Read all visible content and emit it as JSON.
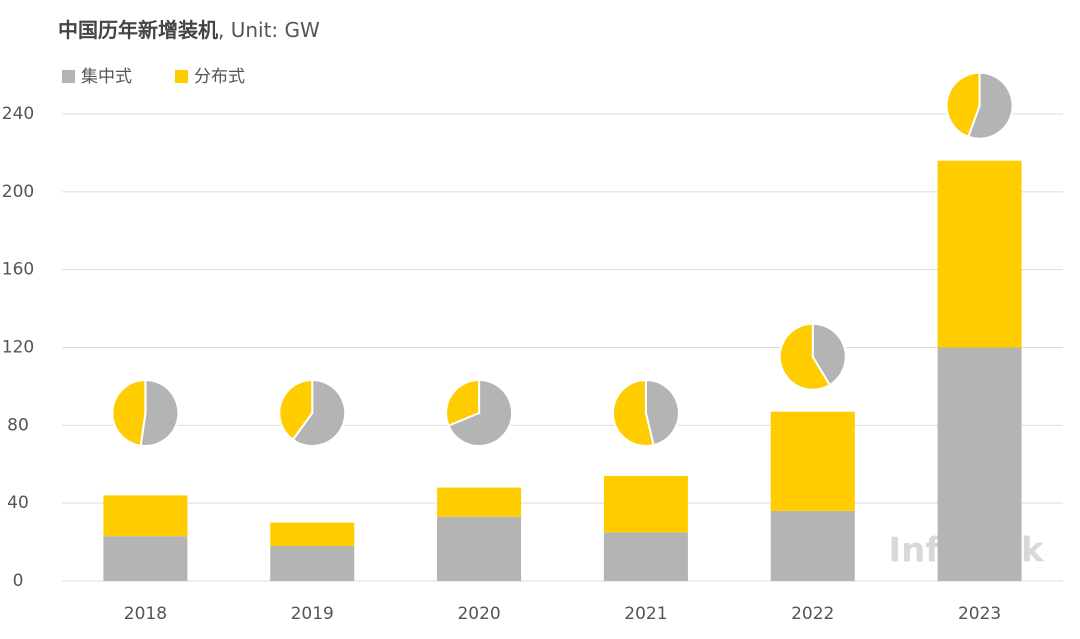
{
  "chart_data": {
    "type": "stacked_bar_with_pies",
    "title": "中国历年新增装机",
    "unit": ", Unit: GW",
    "categories": [
      "2018",
      "2019",
      "2020",
      "2021",
      "2022",
      "2023"
    ],
    "series": [
      {
        "name": "集中式",
        "color": "#b4b4b4",
        "values": [
          23,
          18,
          33,
          25,
          36,
          120
        ]
      },
      {
        "name": "分布式",
        "color": "#ffcc00",
        "values": [
          21,
          12,
          15,
          29,
          51,
          96
        ]
      }
    ],
    "ylim": [
      0,
      240
    ],
    "yticks": [
      0,
      40,
      80,
      120,
      160,
      200,
      240
    ],
    "grid": true,
    "legend": "top-left",
    "watermark": "InfoLink"
  }
}
